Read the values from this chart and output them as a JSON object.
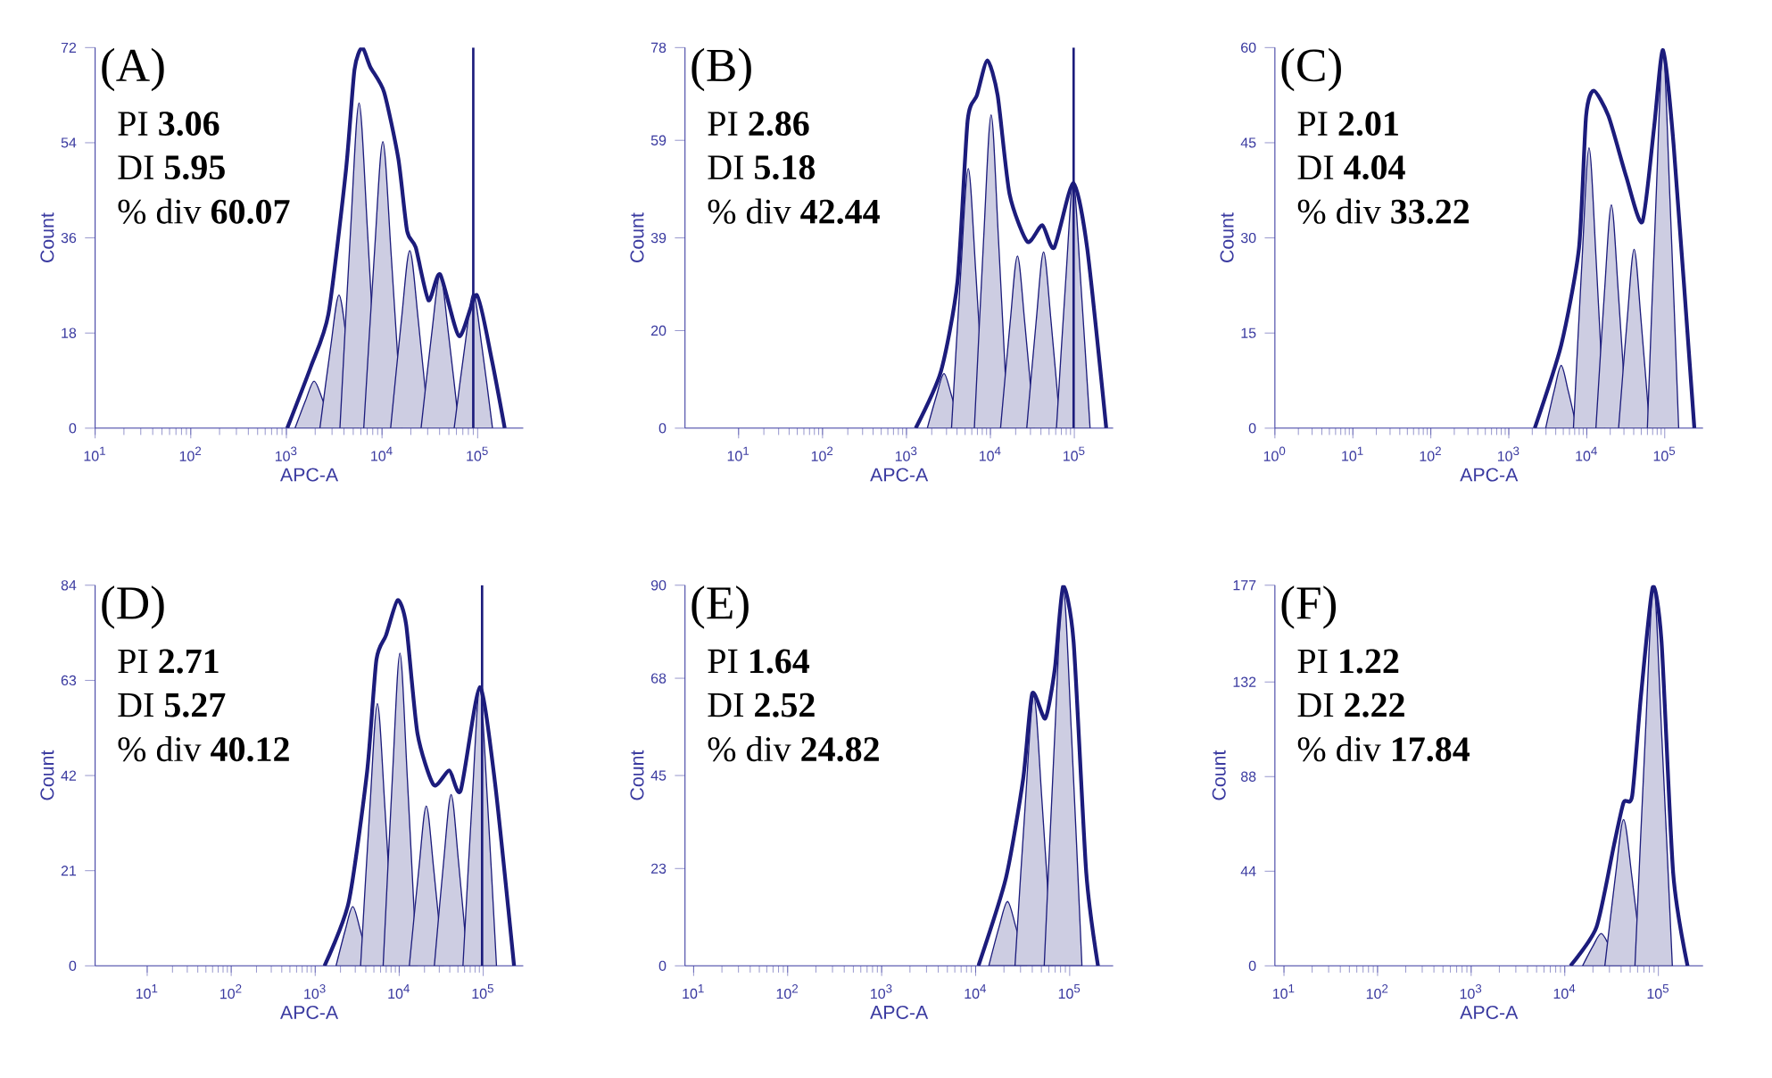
{
  "chart_data": [
    {
      "type": "line",
      "log": "x",
      "xlabel": "APC-A",
      "ylabel": "Count",
      "xlim": [
        10,
        300000
      ],
      "ylim": [
        0,
        72
      ],
      "xticks": [
        {
          "value": 10,
          "label": "10$^{1}$"
        },
        {
          "value": 100,
          "label": "10$^{2}$"
        },
        {
          "value": 1000,
          "label": "10$^{3}$"
        },
        {
          "value": 10000,
          "label": "10$^{4}$"
        },
        {
          "value": 100000,
          "label": "10$^{5}$"
        }
      ],
      "yticks": [
        0,
        18,
        36,
        54,
        72
      ],
      "annotations": [
        "(A)",
        "PI **3.06**",
        "DI **5.95**",
        "% div **60.07**"
      ],
      "ref_lines": [
        {
          "axis": "x",
          "value": 90000,
          "color": "#1c1c7c"
        }
      ],
      "series": [
        {
          "type": "area",
          "color": "#1c1c7c",
          "x": [
            1230,
            1590,
            1950,
            2400,
            3090
          ],
          "values": [
            0,
            5.3,
            8.9,
            5.3,
            0
          ]
        },
        {
          "type": "area",
          "color": "#1c1c7c",
          "x": [
            2240,
            2890,
            3550,
            4370,
            5630
          ],
          "values": [
            0,
            15.1,
            25.2,
            15.1,
            0
          ]
        },
        {
          "type": "area",
          "color": "#1c1c7c",
          "x": [
            3630,
            4670,
            5750,
            7070,
            9110
          ],
          "values": [
            0,
            36.9,
            61.5,
            36.9,
            0
          ]
        },
        {
          "type": "area",
          "color": "#1c1c7c",
          "x": [
            6440,
            8290,
            10200,
            12500,
            16200
          ],
          "values": [
            0,
            32.5,
            54.2,
            32.5,
            0
          ]
        },
        {
          "type": "area",
          "color": "#1c1c7c",
          "x": [
            12300,
            15900,
            19500,
            24000,
            30900
          ],
          "values": [
            0,
            20.2,
            33.6,
            20.2,
            0
          ]
        },
        {
          "type": "area",
          "color": "#1c1c7c",
          "x": [
            25600,
            32900,
            40500,
            49800,
            64200
          ],
          "values": [
            0,
            17.5,
            29.1,
            17.5,
            0
          ]
        },
        {
          "type": "area",
          "color": "#1c1c7c",
          "x": [
            56800,
            73200,
            90000,
            111000,
            143000
          ],
          "values": [
            0,
            15.3,
            25.5,
            15.3,
            0
          ]
        },
        {
          "color": "#1c1c7c",
          "x": [
            1020,
            1800,
            2750,
            4200,
            5150,
            6200,
            7550,
            10500,
            14800,
            18300,
            22500,
            30600,
            40500,
            64000,
            98000,
            140000,
            192000
          ],
          "values": [
            0,
            11.6,
            21.6,
            48.9,
            67.8,
            72,
            68.3,
            63.6,
            51,
            37.3,
            34.2,
            24.2,
            29.1,
            17.4,
            25.2,
            13.1,
            0
          ]
        }
      ]
    },
    {
      "type": "line",
      "log": "x",
      "xlabel": "APC-A",
      "ylabel": "Count",
      "xlim": [
        2.3,
        290000
      ],
      "ylim": [
        0,
        78
      ],
      "xticks": [
        {
          "value": 10,
          "label": "10$^{1}$"
        },
        {
          "value": 100,
          "label": "10$^{2}$"
        },
        {
          "value": 1000,
          "label": "10$^{3}$"
        },
        {
          "value": 10000,
          "label": "10$^{4}$"
        },
        {
          "value": 100000,
          "label": "10$^{5}$"
        }
      ],
      "yticks": [
        0,
        20,
        39,
        59,
        78
      ],
      "annotations": [
        "(B)",
        "PI **2.86**",
        "DI **5.18**",
        "% div **42.44**"
      ],
      "ref_lines": [
        {
          "axis": "x",
          "value": 98000,
          "color": "#1c1c7c"
        }
      ],
      "series": [
        {
          "type": "area",
          "color": "#1c1c7c",
          "x": [
            1770,
            2280,
            2800,
            3440,
            4440
          ],
          "values": [
            0,
            6.7,
            11.2,
            6.7,
            0
          ]
        },
        {
          "type": "area",
          "color": "#1c1c7c",
          "x": [
            3440,
            4430,
            5450,
            6700,
            8640
          ],
          "values": [
            0,
            31.9,
            53.2,
            31.9,
            0
          ]
        },
        {
          "type": "area",
          "color": "#1c1c7c",
          "x": [
            6440,
            8290,
            10200,
            12500,
            16200
          ],
          "values": [
            0,
            38.5,
            64.2,
            38.5,
            0
          ]
        },
        {
          "type": "area",
          "color": "#1c1c7c",
          "x": [
            13200,
            17100,
            21000,
            25800,
            33300
          ],
          "values": [
            0,
            21.2,
            35.3,
            21.2,
            0
          ]
        },
        {
          "type": "area",
          "color": "#1c1c7c",
          "x": [
            27100,
            35000,
            43000,
            52900,
            68200
          ],
          "values": [
            0,
            21.7,
            36.1,
            21.7,
            0
          ]
        },
        {
          "type": "area",
          "color": "#1c1c7c",
          "x": [
            61200,
            78900,
            97000,
            119000,
            154000
          ],
          "values": [
            0,
            30.2,
            50.3,
            30.2,
            0
          ]
        },
        {
          "color": "#1c1c7c",
          "x": [
            1290,
            2570,
            4050,
            5350,
            6900,
            9200,
            12200,
            16900,
            27600,
            41500,
            57500,
            97000,
            142000,
            240000
          ],
          "values": [
            0,
            11.6,
            30,
            63,
            68.2,
            75.4,
            68.2,
            48,
            38.2,
            41.6,
            37,
            50.3,
            37,
            0
          ]
        }
      ]
    },
    {
      "type": "line",
      "log": "x",
      "xlabel": "APC-A",
      "ylabel": "Count",
      "xlim": [
        1,
        310000
      ],
      "ylim": [
        0,
        60
      ],
      "xticks": [
        {
          "value": 1,
          "label": "10$^{0}$"
        },
        {
          "value": 10,
          "label": "10$^{1}$"
        },
        {
          "value": 100,
          "label": "10$^{2}$"
        },
        {
          "value": 1000,
          "label": "10$^{3}$"
        },
        {
          "value": 10000,
          "label": "10$^{4}$"
        },
        {
          "value": 100000,
          "label": "10$^{5}$"
        }
      ],
      "yticks": [
        0,
        15,
        30,
        45,
        60
      ],
      "annotations": [
        "(C)",
        "PI **2.01**",
        "DI **4.04**",
        "% div **33.22**"
      ],
      "series": [
        {
          "type": "area",
          "color": "#1c1c7c",
          "x": [
            2970,
            3820,
            4700,
            5780,
            7450
          ],
          "values": [
            0,
            5.9,
            9.9,
            5.9,
            0
          ]
        },
        {
          "type": "area",
          "color": "#1c1c7c",
          "x": [
            6750,
            8700,
            10700,
            13200,
            17000
          ],
          "values": [
            0,
            26.5,
            44.2,
            26.5,
            0
          ]
        },
        {
          "type": "area",
          "color": "#1c1c7c",
          "x": [
            13100,
            16800,
            20700,
            25500,
            32800
          ],
          "values": [
            0,
            21.1,
            35.2,
            21.1,
            0
          ]
        },
        {
          "type": "area",
          "color": "#1c1c7c",
          "x": [
            25600,
            32900,
            40500,
            49800,
            64200
          ],
          "values": [
            0,
            16.9,
            28.2,
            16.9,
            0
          ]
        },
        {
          "type": "area",
          "color": "#1c1c7c",
          "x": [
            59900,
            77200,
            95000,
            117000,
            151000
          ],
          "values": [
            0,
            35.8,
            59.6,
            35.8,
            0
          ]
        },
        {
          "color": "#1c1c7c",
          "x": [
            2150,
            4700,
            7950,
            9800,
            12300,
            19000,
            32000,
            51500,
            73000,
            95000,
            130000,
            240000
          ],
          "values": [
            0,
            13.1,
            28.4,
            49.2,
            53.2,
            49.2,
            39.7,
            32.5,
            47.4,
            59.6,
            44.7,
            0
          ]
        }
      ]
    },
    {
      "type": "line",
      "log": "x",
      "xlabel": "APC-A",
      "ylabel": "Count",
      "xlim": [
        2.4,
        300000
      ],
      "ylim": [
        0,
        84
      ],
      "xticks": [
        {
          "value": 10,
          "label": "10$^{1}$"
        },
        {
          "value": 100,
          "label": "10$^{2}$"
        },
        {
          "value": 1000,
          "label": "10$^{3}$"
        },
        {
          "value": 10000,
          "label": "10$^{4}$"
        },
        {
          "value": 100000,
          "label": "10$^{5}$"
        }
      ],
      "yticks": [
        0,
        21,
        42,
        63,
        84
      ],
      "annotations": [
        "(D)",
        "PI **2.71**",
        "DI **5.27**",
        "% div **40.12**"
      ],
      "ref_lines": [
        {
          "axis": "x",
          "value": 97000,
          "color": "#1c1c7c"
        }
      ],
      "series": [
        {
          "type": "area",
          "color": "#1c1c7c",
          "x": [
            1770,
            2280,
            2800,
            3440,
            4440
          ],
          "values": [
            0,
            7.9,
            13.1,
            7.9,
            0
          ]
        },
        {
          "type": "area",
          "color": "#1c1c7c",
          "x": [
            3470,
            4470,
            5500,
            6770,
            8720
          ],
          "values": [
            0,
            34.7,
            57.9,
            34.7,
            0
          ]
        },
        {
          "type": "area",
          "color": "#1c1c7c",
          "x": [
            6440,
            8290,
            10200,
            12500,
            16200
          ],
          "values": [
            0,
            41.4,
            69,
            41.4,
            0
          ]
        },
        {
          "type": "area",
          "color": "#1c1c7c",
          "x": [
            13200,
            17100,
            21000,
            25800,
            33300
          ],
          "values": [
            0,
            21.2,
            35.3,
            21.2,
            0
          ]
        },
        {
          "type": "area",
          "color": "#1c1c7c",
          "x": [
            26200,
            33700,
            41500,
            51000,
            65800
          ],
          "values": [
            0,
            22.7,
            37.8,
            22.7,
            0
          ]
        },
        {
          "type": "area",
          "color": "#1c1c7c",
          "x": [
            57400,
            74000,
            91000,
            112000,
            144000
          ],
          "values": [
            0,
            36.9,
            61.5,
            36.9,
            0
          ]
        },
        {
          "color": "#1c1c7c",
          "x": [
            1290,
            2500,
            4150,
            5350,
            6950,
            9550,
            12100,
            16500,
            25800,
            39500,
            54000,
            91000,
            138000,
            233000
          ],
          "values": [
            0,
            14,
            42.9,
            67.5,
            72.9,
            80.7,
            75.3,
            51.3,
            39.9,
            43.1,
            38.7,
            61.5,
            40.5,
            0
          ]
        }
      ]
    },
    {
      "type": "line",
      "log": "x",
      "xlabel": "APC-A",
      "ylabel": "Count",
      "xlim": [
        8.1,
        290000
      ],
      "ylim": [
        0,
        90
      ],
      "xticks": [
        {
          "value": 10,
          "label": "10$^{1}$"
        },
        {
          "value": 100,
          "label": "10$^{2}$"
        },
        {
          "value": 1000,
          "label": "10$^{3}$"
        },
        {
          "value": 10000,
          "label": "10$^{4}$"
        },
        {
          "value": 100000,
          "label": "10$^{5}$"
        }
      ],
      "yticks": [
        0,
        23,
        45,
        68,
        90
      ],
      "annotations": [
        "(E)",
        "PI **1.64**",
        "DI **2.52**",
        "% div **24.82**"
      ],
      "series": [
        {
          "type": "area",
          "color": "#1c1c7c",
          "x": [
            13800,
            17700,
            21800,
            26800,
            34600
          ],
          "values": [
            0,
            9.1,
            15.2,
            9.1,
            0
          ]
        },
        {
          "type": "area",
          "color": "#1c1c7c",
          "x": [
            26200,
            33700,
            41500,
            51000,
            65800
          ],
          "values": [
            0,
            38.2,
            63.7,
            38.2,
            0
          ]
        },
        {
          "type": "area",
          "color": "#1c1c7c",
          "x": [
            53600,
            69100,
            85000,
            105000,
            135000
          ],
          "values": [
            0,
            53.8,
            89.7,
            53.8,
            0
          ]
        },
        {
          "color": "#1c1c7c",
          "x": [
            10700,
            21000,
            32000,
            40000,
            55000,
            69500,
            85000,
            110000,
            150000,
            200000
          ],
          "values": [
            0,
            20.8,
            44.2,
            64.4,
            58.5,
            70.2,
            89.7,
            76.7,
            22.1,
            0
          ]
        }
      ]
    },
    {
      "type": "line",
      "log": "x",
      "xlabel": "APC-A",
      "ylabel": "Count",
      "xlim": [
        8,
        300000
      ],
      "ylim": [
        0,
        177
      ],
      "xticks": [
        {
          "value": 10,
          "label": "10$^{1}$"
        },
        {
          "value": 100,
          "label": "10$^{2}$"
        },
        {
          "value": 1000,
          "label": "10$^{3}$"
        },
        {
          "value": 10000,
          "label": "10$^{4}$"
        },
        {
          "value": 100000,
          "label": "10$^{5}$"
        }
      ],
      "yticks": [
        0,
        44,
        88,
        132,
        177
      ],
      "annotations": [
        "(F)",
        "PI **1.22**",
        "DI **2.22**",
        "% div **17.84**"
      ],
      "series": [
        {
          "type": "area",
          "color": "#1c1c7c",
          "x": [
            15500,
            19900,
            24500,
            30100,
            38800
          ],
          "values": [
            0,
            9,
            15,
            9,
            0
          ]
        },
        {
          "type": "area",
          "color": "#1c1c7c",
          "x": [
            26800,
            34600,
            42500,
            52300,
            67400
          ],
          "values": [
            0,
            41,
            68,
            41,
            0
          ]
        },
        {
          "type": "area",
          "color": "#1c1c7c",
          "x": [
            56200,
            72400,
            89000,
            109000,
            141000
          ],
          "values": [
            0,
            106,
            177,
            106,
            0
          ]
        },
        {
          "color": "#1c1c7c",
          "x": [
            11500,
            21800,
            33500,
            42500,
            52500,
            65000,
            87000,
            108000,
            144000,
            205000
          ],
          "values": [
            0,
            18,
            56,
            76,
            79,
            125,
            176,
            151,
            43,
            0
          ]
        }
      ]
    }
  ]
}
